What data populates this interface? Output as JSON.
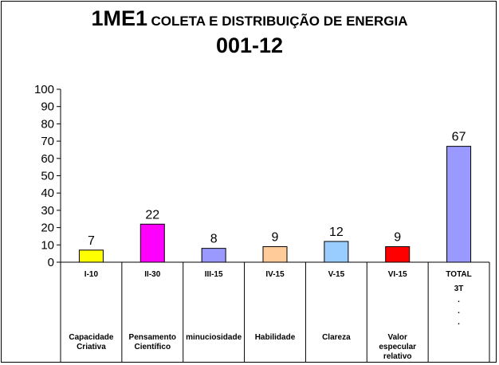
{
  "title": {
    "code": "1ME1",
    "text": "COLETA E DISTRIBUIÇÃO DE ENERGIA",
    "subtitle": "001-12"
  },
  "chart_data": {
    "type": "bar",
    "title": "1ME1 COLETA E DISTRIBUIÇÃO DE ENERGIA",
    "subtitle": "001-12",
    "ylim": [
      0,
      100
    ],
    "yticks": [
      0,
      10,
      20,
      30,
      40,
      50,
      60,
      70,
      80,
      90,
      100
    ],
    "grid": false,
    "categories": [
      "I-10",
      "II-30",
      "III-15",
      "IV-15",
      "V-15",
      "VI-15",
      "TOTAL"
    ],
    "values": [
      7,
      22,
      8,
      9,
      12,
      9,
      67
    ],
    "colors": [
      "#ffff00",
      "#ff00ff",
      "#9999ff",
      "#ffcc99",
      "#99ccff",
      "#ff0000",
      "#9999ff"
    ],
    "category_details": [
      [
        "Capacidade",
        "Criativa"
      ],
      [
        "Pensamento",
        "Científico"
      ],
      [
        "minuciosidade"
      ],
      [
        "Habilidade"
      ],
      [
        "Clareza"
      ],
      [
        "Valor",
        "especular",
        "relativo"
      ],
      [
        "3T",
        ".",
        ".",
        "."
      ]
    ]
  }
}
